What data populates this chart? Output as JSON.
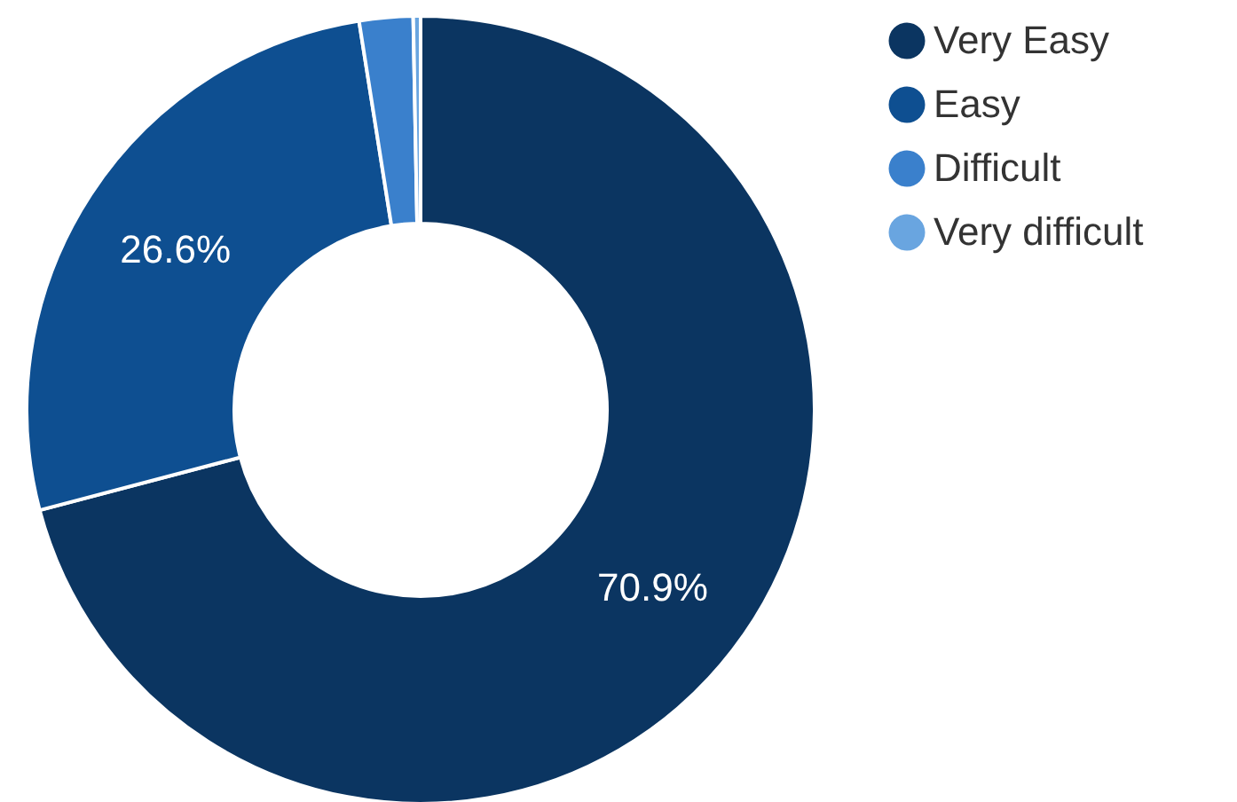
{
  "chart_data": {
    "type": "donut",
    "categories": [
      "Very Easy",
      "Easy",
      "Difficult",
      "Very difficult"
    ],
    "values": [
      70.9,
      26.6,
      2.2,
      0.3
    ],
    "colors": [
      "#0b3561",
      "#0e4f91",
      "#3a80cc",
      "#69a5e0"
    ],
    "value_labels": [
      "70.9%",
      "26.6%",
      null,
      null
    ],
    "legend": "top right"
  }
}
